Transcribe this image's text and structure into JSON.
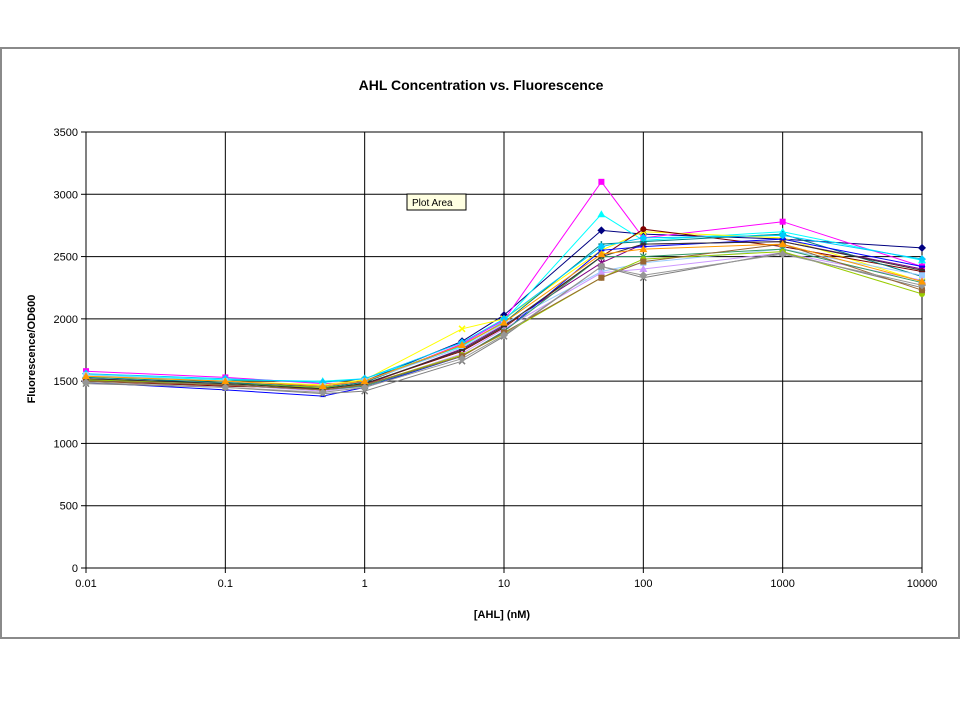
{
  "chart_data": {
    "type": "line",
    "title": "AHL Concentration vs. Fluorescence",
    "xlabel": "[AHL] (nM)",
    "ylabel": "Fluorescence/OD600",
    "x_scale": "log",
    "xlim": [
      0.01,
      10000
    ],
    "ylim": [
      0,
      3500
    ],
    "x_ticks": [
      "0.01",
      "0.1",
      "1",
      "10",
      "100",
      "1000",
      "10000"
    ],
    "y_ticks": [
      "0",
      "500",
      "1000",
      "1500",
      "2000",
      "2500",
      "3000",
      "3500"
    ],
    "grid": true,
    "legend": "none",
    "x": [
      0.01,
      0.1,
      0.5,
      1,
      5,
      10,
      50,
      100,
      1000,
      10000
    ],
    "series": [
      {
        "color": "#000080",
        "marker": "diamond",
        "values": [
          1520,
          1480,
          1460,
          1500,
          1820,
          2030,
          2710,
          2680,
          2640,
          2570
        ]
      },
      {
        "color": "#ff00ff",
        "marker": "square",
        "values": [
          1580,
          1530,
          1480,
          1490,
          1800,
          1990,
          3100,
          2650,
          2780,
          2420
        ]
      },
      {
        "color": "#00ffff",
        "marker": "triangle",
        "values": [
          1550,
          1510,
          1500,
          1520,
          1780,
          1980,
          2840,
          2630,
          2700,
          2470
        ]
      },
      {
        "color": "#ffff00",
        "marker": "x",
        "values": [
          1540,
          1500,
          1470,
          1510,
          1920,
          2000,
          2550,
          2700,
          2650,
          2300
        ]
      },
      {
        "color": "#800080",
        "marker": "star",
        "values": [
          1510,
          1470,
          1430,
          1470,
          1760,
          1950,
          2450,
          2600,
          2620,
          2400
        ]
      },
      {
        "color": "#800000",
        "marker": "circle",
        "values": [
          1500,
          1460,
          1440,
          1480,
          1740,
          1930,
          2500,
          2720,
          2580,
          2380
        ]
      },
      {
        "color": "#008080",
        "marker": "plus",
        "values": [
          1530,
          1490,
          1450,
          1490,
          1790,
          1970,
          2600,
          2620,
          2680,
          2340
        ]
      },
      {
        "color": "#0000ff",
        "marker": "dash",
        "values": [
          1490,
          1430,
          1380,
          1450,
          1700,
          1900,
          2550,
          2580,
          2640,
          2420
        ]
      },
      {
        "color": "#00ccff",
        "marker": "diamond",
        "values": [
          1560,
          1520,
          1490,
          1520,
          1810,
          2000,
          2580,
          2650,
          2670,
          2480
        ]
      },
      {
        "color": "#99ccff",
        "marker": "square",
        "values": [
          1550,
          1500,
          1460,
          1500,
          1770,
          1960,
          2380,
          2450,
          2560,
          2350
        ]
      },
      {
        "color": "#cc99ff",
        "marker": "triangle",
        "values": [
          1520,
          1470,
          1420,
          1460,
          1720,
          1920,
          2370,
          2400,
          2530,
          2310
        ]
      },
      {
        "color": "#808080",
        "marker": "x",
        "values": [
          1480,
          1450,
          1400,
          1420,
          1660,
          1860,
          2420,
          2330,
          2530,
          2250
        ]
      },
      {
        "color": "#339966",
        "marker": "star",
        "values": [
          1500,
          1470,
          1430,
          1460,
          1700,
          1900,
          2500,
          2500,
          2560,
          2290
        ]
      },
      {
        "color": "#99cc00",
        "marker": "circle",
        "values": [
          1510,
          1480,
          1450,
          1470,
          1710,
          1880,
          2330,
          2480,
          2540,
          2200
        ]
      },
      {
        "color": "#996633",
        "marker": "square",
        "values": [
          1500,
          1470,
          1430,
          1470,
          1700,
          1890,
          2330,
          2460,
          2600,
          2230
        ]
      },
      {
        "color": "#333333",
        "marker": "dash",
        "values": [
          1520,
          1480,
          1440,
          1480,
          1750,
          1940,
          2500,
          2600,
          2620,
          2390
        ]
      },
      {
        "color": "#969696",
        "marker": "diamond",
        "values": [
          1490,
          1450,
          1410,
          1450,
          1680,
          1870,
          2420,
          2350,
          2520,
          2270
        ]
      },
      {
        "color": "#ff9900",
        "marker": "triangle",
        "values": [
          1540,
          1500,
          1460,
          1500,
          1790,
          1970,
          2520,
          2560,
          2600,
          2300
        ]
      }
    ]
  },
  "tooltip": {
    "text": "Plot Area"
  }
}
